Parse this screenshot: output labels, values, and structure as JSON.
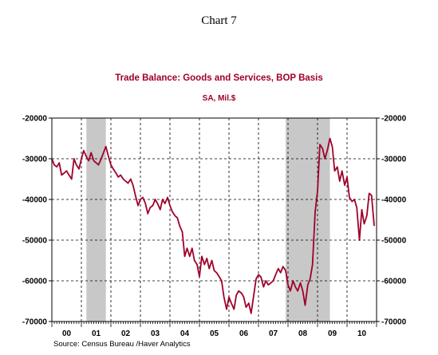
{
  "page": {
    "heading": "Chart 7"
  },
  "colors": {
    "series": "#a0002a",
    "title": "#a0002a",
    "subtitle": "#a0002a",
    "recession": "#c8c8c8",
    "grid": "#000000"
  },
  "chart_data": {
    "type": "line",
    "title": "Trade Balance:  Goods and Services, BOP Basis",
    "subtitle": "SA, Mil.$",
    "source": "Source:  Census Bureau /Haver Analytics",
    "ylim": [
      -70000,
      -20000
    ],
    "y_ticks": [
      -20000,
      -30000,
      -40000,
      -50000,
      -60000,
      -70000
    ],
    "x_range": [
      2000.0,
      2010.92
    ],
    "x_tick_labels": [
      "00",
      "01",
      "02",
      "03",
      "04",
      "05",
      "06",
      "07",
      "08",
      "09",
      "10"
    ],
    "grid": true,
    "recession_shading": [
      [
        2001.17,
        2001.83
      ],
      [
        2007.92,
        2009.42
      ]
    ],
    "series": [
      {
        "values": [
          [
            2000.0,
            -30000
          ],
          [
            2000.08,
            -31500
          ],
          [
            2000.17,
            -32000
          ],
          [
            2000.25,
            -31000
          ],
          [
            2000.33,
            -34000
          ],
          [
            2000.42,
            -33500
          ],
          [
            2000.5,
            -33000
          ],
          [
            2000.58,
            -34000
          ],
          [
            2000.67,
            -35000
          ],
          [
            2000.75,
            -30000
          ],
          [
            2000.83,
            -31500
          ],
          [
            2000.92,
            -32500
          ],
          [
            2001.0,
            -30000
          ],
          [
            2001.08,
            -28000
          ],
          [
            2001.17,
            -29500
          ],
          [
            2001.25,
            -30500
          ],
          [
            2001.33,
            -28500
          ],
          [
            2001.42,
            -30500
          ],
          [
            2001.5,
            -31000
          ],
          [
            2001.58,
            -31500
          ],
          [
            2001.67,
            -30000
          ],
          [
            2001.75,
            -28500
          ],
          [
            2001.83,
            -27000
          ],
          [
            2001.92,
            -29500
          ],
          [
            2002.0,
            -31500
          ],
          [
            2002.08,
            -32500
          ],
          [
            2002.17,
            -33500
          ],
          [
            2002.25,
            -34500
          ],
          [
            2002.33,
            -34000
          ],
          [
            2002.42,
            -35000
          ],
          [
            2002.5,
            -35500
          ],
          [
            2002.58,
            -36000
          ],
          [
            2002.67,
            -35000
          ],
          [
            2002.75,
            -36500
          ],
          [
            2002.83,
            -39000
          ],
          [
            2002.92,
            -41500
          ],
          [
            2003.0,
            -40000
          ],
          [
            2003.08,
            -39500
          ],
          [
            2003.17,
            -41000
          ],
          [
            2003.25,
            -43500
          ],
          [
            2003.33,
            -42000
          ],
          [
            2003.42,
            -41500
          ],
          [
            2003.5,
            -40000
          ],
          [
            2003.58,
            -41000
          ],
          [
            2003.67,
            -42500
          ],
          [
            2003.75,
            -40000
          ],
          [
            2003.83,
            -41000
          ],
          [
            2003.92,
            -39500
          ],
          [
            2004.0,
            -41500
          ],
          [
            2004.08,
            -43000
          ],
          [
            2004.17,
            -44000
          ],
          [
            2004.25,
            -44500
          ],
          [
            2004.33,
            -46500
          ],
          [
            2004.42,
            -48000
          ],
          [
            2004.5,
            -54000
          ],
          [
            2004.58,
            -52000
          ],
          [
            2004.67,
            -54000
          ],
          [
            2004.75,
            -52000
          ],
          [
            2004.83,
            -55000
          ],
          [
            2004.92,
            -56000
          ],
          [
            2005.0,
            -59000
          ],
          [
            2005.08,
            -54000
          ],
          [
            2005.17,
            -56000
          ],
          [
            2005.25,
            -54500
          ],
          [
            2005.33,
            -57000
          ],
          [
            2005.42,
            -55000
          ],
          [
            2005.5,
            -57500
          ],
          [
            2005.58,
            -58000
          ],
          [
            2005.67,
            -59000
          ],
          [
            2005.75,
            -60000
          ],
          [
            2005.83,
            -64000
          ],
          [
            2005.92,
            -67000
          ],
          [
            2006.0,
            -64000
          ],
          [
            2006.08,
            -65500
          ],
          [
            2006.17,
            -67000
          ],
          [
            2006.25,
            -63500
          ],
          [
            2006.33,
            -62500
          ],
          [
            2006.42,
            -63000
          ],
          [
            2006.5,
            -64000
          ],
          [
            2006.58,
            -66500
          ],
          [
            2006.67,
            -65500
          ],
          [
            2006.75,
            -68000
          ],
          [
            2006.83,
            -64000
          ],
          [
            2006.92,
            -59500
          ],
          [
            2007.0,
            -58500
          ],
          [
            2007.08,
            -59000
          ],
          [
            2007.17,
            -61500
          ],
          [
            2007.25,
            -60000
          ],
          [
            2007.33,
            -61000
          ],
          [
            2007.42,
            -60500
          ],
          [
            2007.5,
            -60000
          ],
          [
            2007.58,
            -58500
          ],
          [
            2007.67,
            -57000
          ],
          [
            2007.75,
            -58000
          ],
          [
            2007.83,
            -56500
          ],
          [
            2007.92,
            -57500
          ],
          [
            2008.0,
            -61000
          ],
          [
            2008.08,
            -62500
          ],
          [
            2008.17,
            -60000
          ],
          [
            2008.25,
            -61500
          ],
          [
            2008.33,
            -62500
          ],
          [
            2008.42,
            -60500
          ],
          [
            2008.5,
            -62500
          ],
          [
            2008.58,
            -66000
          ],
          [
            2008.67,
            -61000
          ],
          [
            2008.75,
            -59500
          ],
          [
            2008.83,
            -56000
          ],
          [
            2008.92,
            -43000
          ],
          [
            2009.0,
            -38000
          ],
          [
            2009.08,
            -26500
          ],
          [
            2009.17,
            -27500
          ],
          [
            2009.25,
            -30000
          ],
          [
            2009.33,
            -28000
          ],
          [
            2009.42,
            -25000
          ],
          [
            2009.5,
            -27000
          ],
          [
            2009.58,
            -33000
          ],
          [
            2009.67,
            -32000
          ],
          [
            2009.75,
            -35500
          ],
          [
            2009.83,
            -33000
          ],
          [
            2009.92,
            -36500
          ],
          [
            2010.0,
            -34500
          ],
          [
            2010.08,
            -39500
          ],
          [
            2010.17,
            -40500
          ],
          [
            2010.25,
            -40000
          ],
          [
            2010.33,
            -42000
          ],
          [
            2010.42,
            -50000
          ],
          [
            2010.5,
            -42500
          ],
          [
            2010.58,
            -46000
          ],
          [
            2010.67,
            -44000
          ],
          [
            2010.75,
            -38500
          ],
          [
            2010.83,
            -39000
          ],
          [
            2010.92,
            -46500
          ]
        ]
      }
    ]
  }
}
